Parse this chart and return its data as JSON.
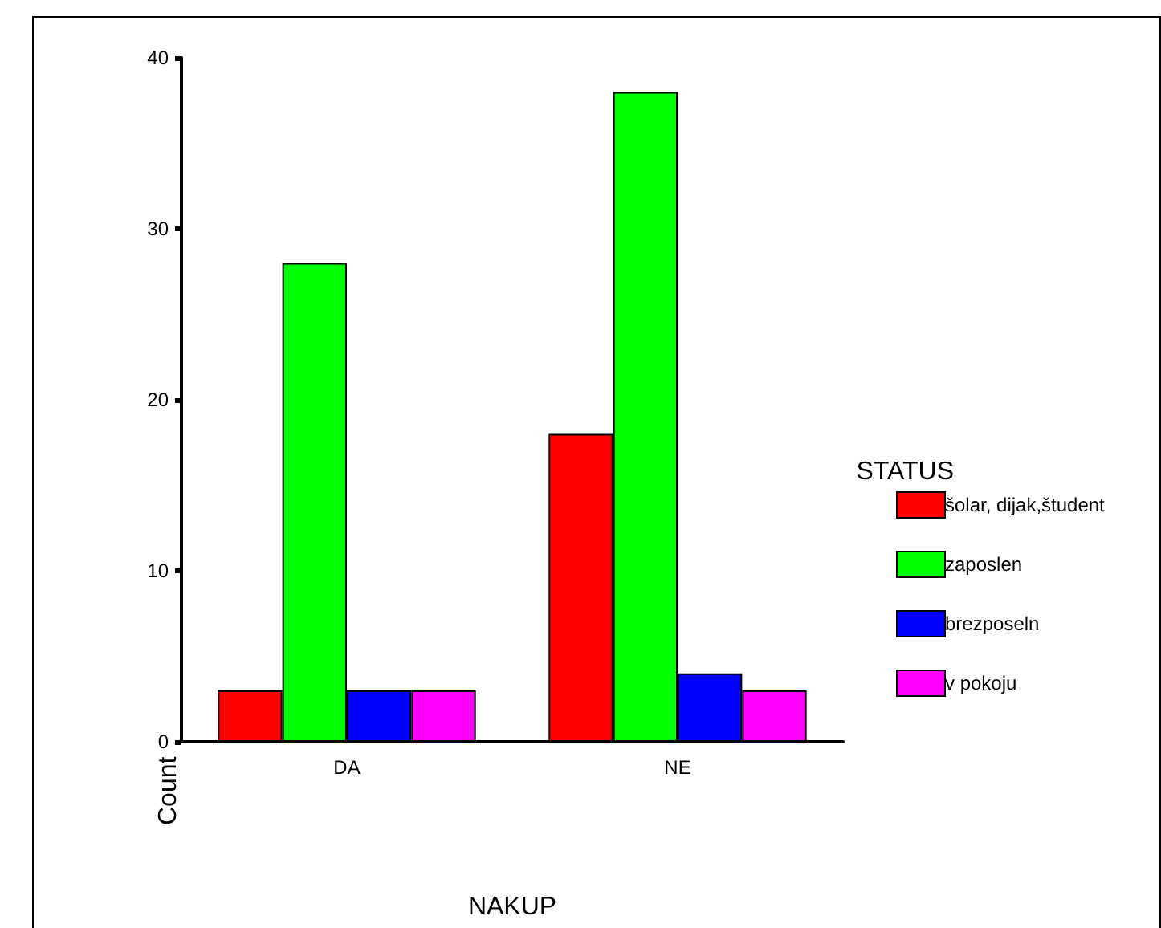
{
  "chart_data": {
    "type": "bar",
    "xlabel": "NAKUP",
    "ylabel": "Count",
    "legend_title": "STATUS",
    "categories": [
      "DA",
      "NE"
    ],
    "series": [
      {
        "name": "šolar, dijak,študent",
        "color": "#ff0000",
        "values": [
          3,
          18
        ]
      },
      {
        "name": "zaposlen",
        "color": "#00ff00",
        "values": [
          28,
          38
        ]
      },
      {
        "name": "brezposeln",
        "color": "#0000ff",
        "values": [
          3,
          4
        ]
      },
      {
        "name": "v pokoju",
        "color": "#ff00ff",
        "values": [
          3,
          3
        ]
      }
    ],
    "ylim": [
      0,
      40
    ],
    "yticks": [
      0,
      10,
      20,
      30,
      40
    ],
    "grid": false,
    "legend": "right"
  }
}
